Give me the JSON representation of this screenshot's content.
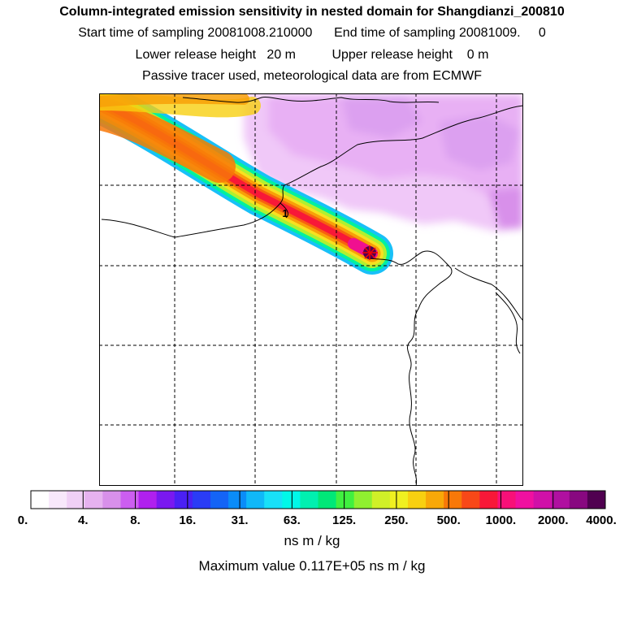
{
  "header": {
    "title": "Column-integrated emission sensitivity in nested domain for Shangdianzi_200810",
    "line1": "Start time of sampling 20081008.210000      End time of sampling 20081009.     0",
    "line2": "Lower release height   20 m          Upper release height    0 m",
    "line3": "Passive tracer used, meteorological data are from ECMWF"
  },
  "map": {
    "site_marker_label": "1",
    "grid": "dashed"
  },
  "chart_data": {
    "type": "heatmap",
    "colorbar": {
      "tick_labels": [
        "0.",
        "4.",
        "8.",
        "16.",
        "31.",
        "63.",
        "125.",
        "250.",
        "500.",
        "1000.",
        "2000.",
        "4000."
      ],
      "colors": [
        "#ffffff",
        "#f8e8fb",
        "#f0d0f6",
        "#e6b2f0",
        "#d890ea",
        "#cc5ef0",
        "#b020ee",
        "#7a18f0",
        "#4a20f4",
        "#2a3cf6",
        "#1464f6",
        "#0a8cf8",
        "#10b8f8",
        "#18e0f8",
        "#00f8e8",
        "#00f0b0",
        "#00e878",
        "#40f040",
        "#90f030",
        "#d0f028",
        "#f0f020",
        "#f8d010",
        "#f8a808",
        "#f87808",
        "#f84818",
        "#f81838",
        "#f81078",
        "#f010a0",
        "#d010a8",
        "#b010a0",
        "#880880",
        "#500050"
      ],
      "units": "ns m / kg"
    },
    "max_value_text": "Maximum value  0.117E+05 ns m / kg"
  }
}
